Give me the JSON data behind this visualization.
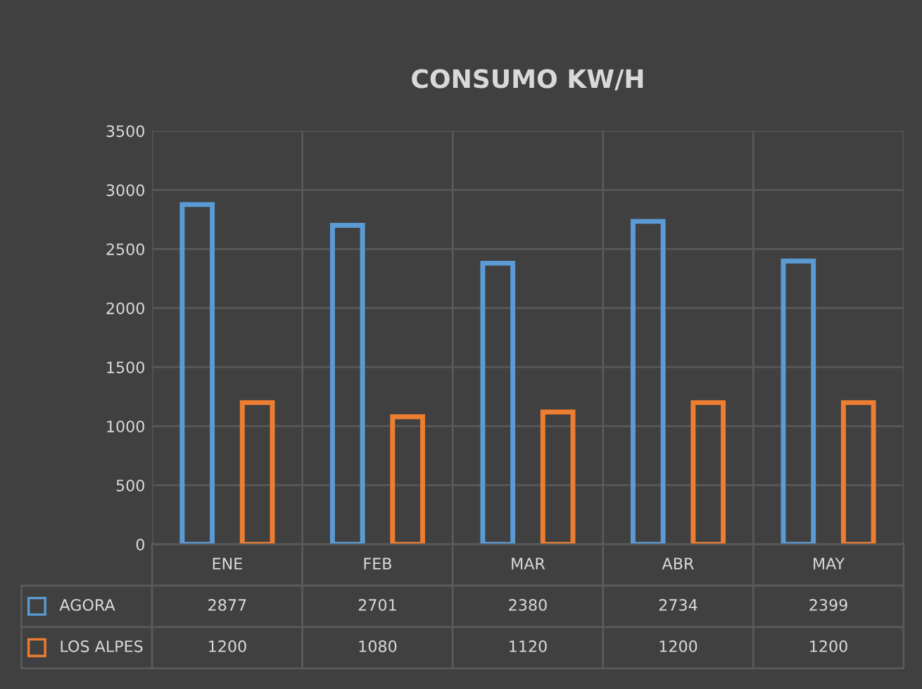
{
  "chart_data": {
    "type": "bar",
    "title": "CONSUMO KW/H",
    "categories": [
      "ENE",
      "FEB",
      "MAR",
      "ABR",
      "MAY"
    ],
    "series": [
      {
        "name": "AGORA",
        "color": "#5b9bd5",
        "values": [
          2877,
          2701,
          2380,
          2734,
          2399
        ]
      },
      {
        "name": "LOS ALPES",
        "color": "#ed7d31",
        "values": [
          1200,
          1080,
          1120,
          1200,
          1200
        ]
      }
    ],
    "ylim": [
      0,
      3500
    ],
    "yticks": [
      0,
      500,
      1000,
      1500,
      2000,
      2500,
      3000,
      3500
    ],
    "grid": true,
    "legend": "bottom left",
    "data_labels": true
  }
}
